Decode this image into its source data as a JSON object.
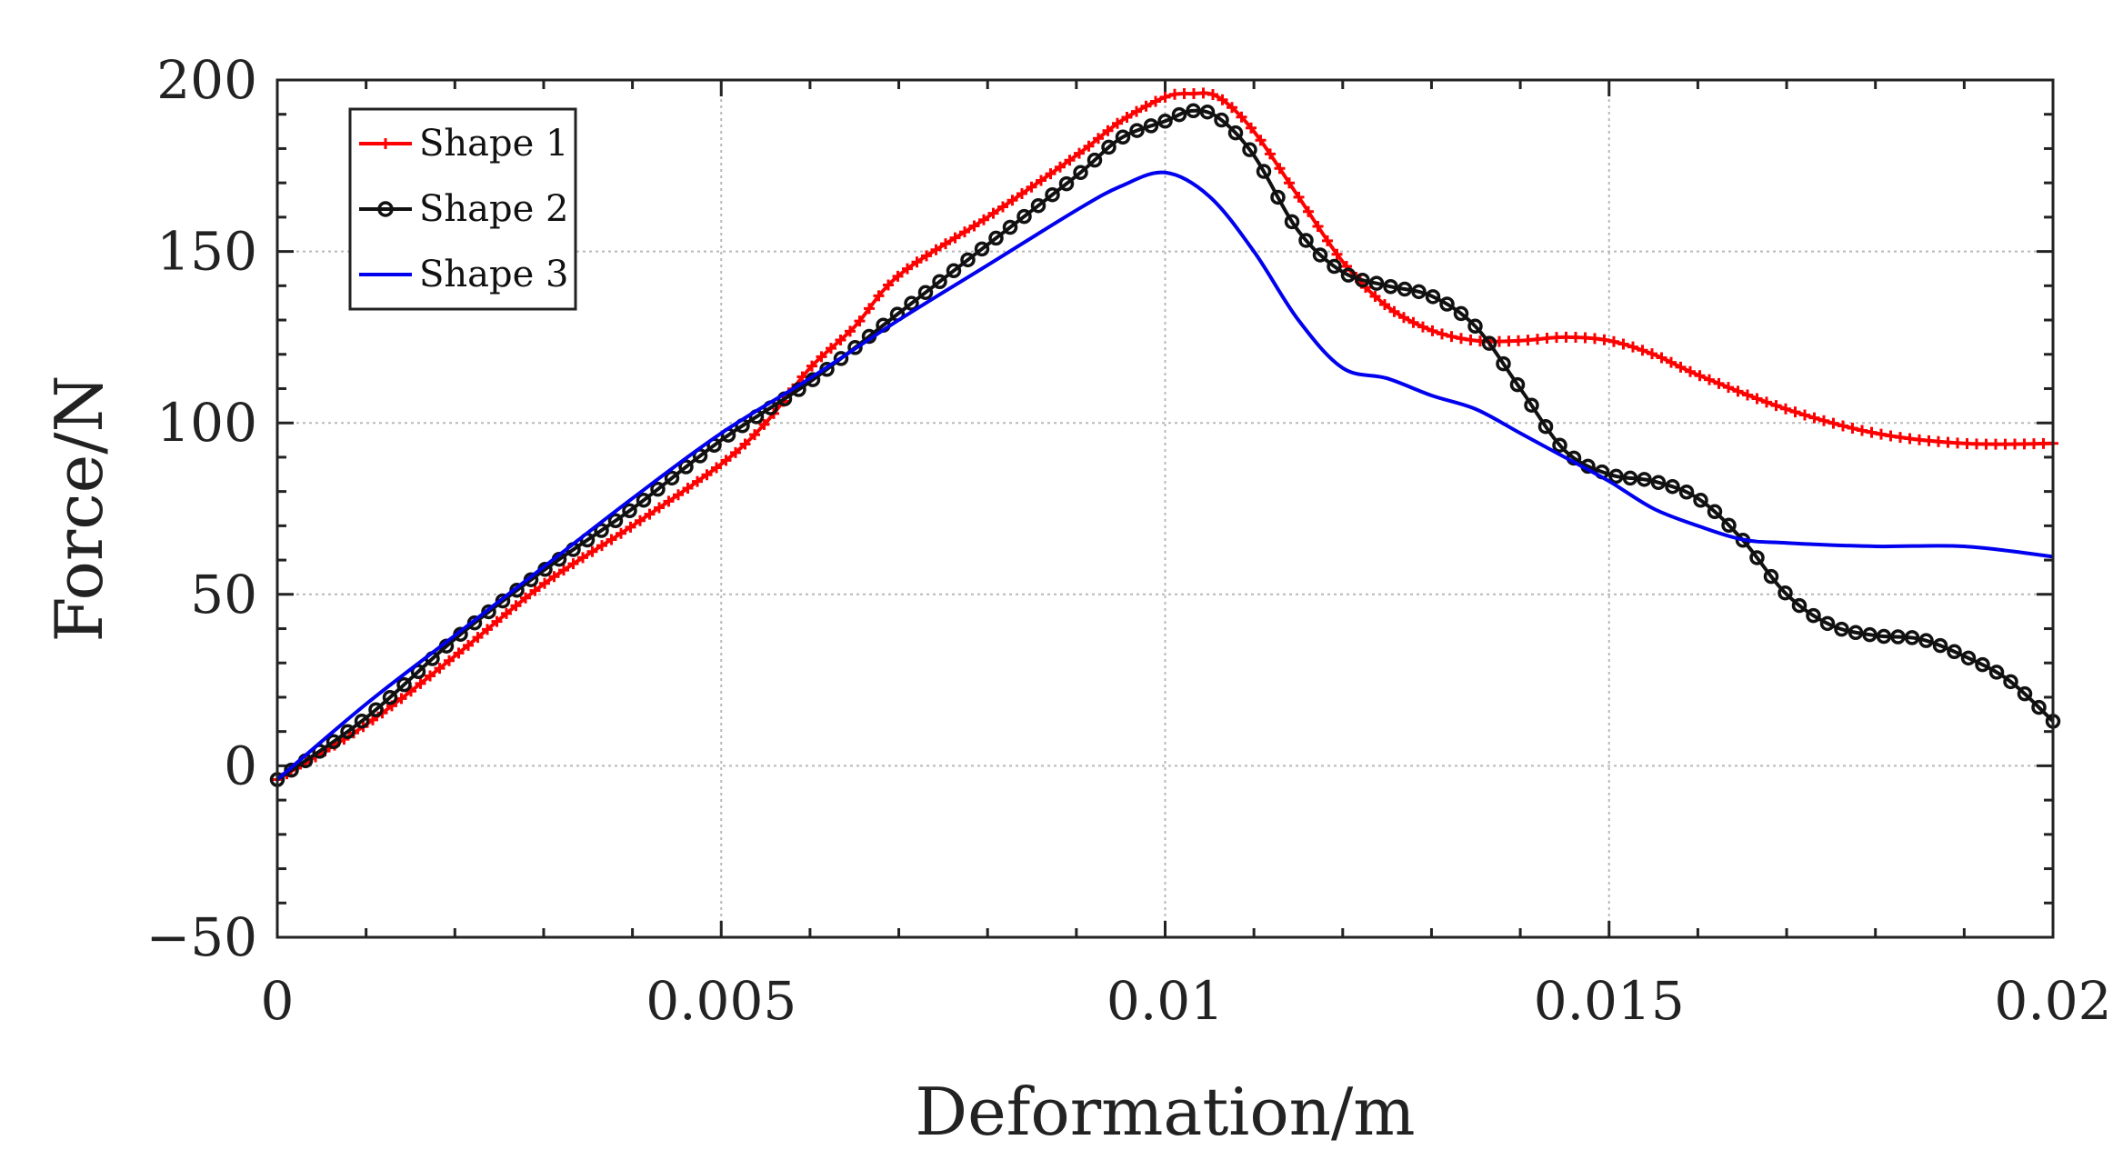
{
  "chart_data": {
    "type": "line",
    "title": "",
    "xlabel": "Deformation/m",
    "ylabel": "Force/N",
    "xlim": [
      0,
      0.02
    ],
    "ylim": [
      -50,
      200
    ],
    "xticks": [
      0,
      0.005,
      0.01,
      0.015,
      0.02
    ],
    "xtick_labels": [
      "0",
      "0.005",
      "0.01",
      "0.015",
      "0.02"
    ],
    "yticks": [
      -50,
      0,
      50,
      100,
      150,
      200
    ],
    "ytick_labels": [
      "−50",
      "0",
      "50",
      "100",
      "150",
      "200"
    ],
    "grid": true,
    "legend_position": "top-left",
    "series": [
      {
        "name": "Shape 1",
        "color": "#ff0000",
        "marker": "plus",
        "x": [
          0,
          0.001,
          0.002,
          0.003,
          0.004,
          0.005,
          0.0055,
          0.006,
          0.0065,
          0.007,
          0.008,
          0.009,
          0.0095,
          0.01,
          0.0103,
          0.0106,
          0.011,
          0.0115,
          0.012,
          0.0125,
          0.013,
          0.0135,
          0.014,
          0.0145,
          0.015,
          0.0155,
          0.016,
          0.017,
          0.018,
          0.019,
          0.02
        ],
        "y": [
          -4,
          12,
          32,
          53,
          70,
          88,
          100,
          116,
          128,
          143,
          160,
          178,
          188,
          195,
          196,
          195,
          185,
          166,
          147,
          134,
          127,
          124,
          124,
          125,
          124,
          120,
          114,
          104,
          97,
          94,
          94
        ]
      },
      {
        "name": "Shape 2",
        "color": "#111111",
        "marker": "circle",
        "x": [
          0,
          0.001,
          0.002,
          0.003,
          0.004,
          0.005,
          0.006,
          0.007,
          0.008,
          0.009,
          0.0095,
          0.01,
          0.0103,
          0.0106,
          0.011,
          0.0115,
          0.012,
          0.0125,
          0.013,
          0.0135,
          0.014,
          0.0145,
          0.015,
          0.0155,
          0.016,
          0.0165,
          0.017,
          0.0175,
          0.018,
          0.0185,
          0.019,
          0.0195,
          0.02
        ],
        "y": [
          -4,
          14,
          37,
          57,
          75,
          95,
          112,
          132,
          152,
          172,
          183,
          188,
          191,
          189,
          178,
          156,
          144,
          140,
          137,
          128,
          110,
          92,
          85,
          83,
          78,
          66,
          50,
          41,
          38,
          37,
          32,
          25,
          13
        ]
      },
      {
        "name": "Shape 3",
        "color": "#0000ee",
        "marker": "none",
        "x": [
          0,
          0.001,
          0.002,
          0.003,
          0.004,
          0.005,
          0.006,
          0.007,
          0.008,
          0.009,
          0.0095,
          0.01,
          0.0105,
          0.011,
          0.0115,
          0.012,
          0.0125,
          0.013,
          0.0135,
          0.014,
          0.0145,
          0.015,
          0.0155,
          0.016,
          0.0165,
          0.017,
          0.018,
          0.019,
          0.02
        ],
        "y": [
          -4,
          18,
          38,
          58,
          78,
          97,
          113,
          130,
          146,
          162,
          169,
          173,
          166,
          150,
          130,
          116,
          113,
          108,
          104,
          97,
          90,
          83,
          75,
          70,
          66,
          65,
          64,
          64,
          61
        ]
      }
    ]
  }
}
